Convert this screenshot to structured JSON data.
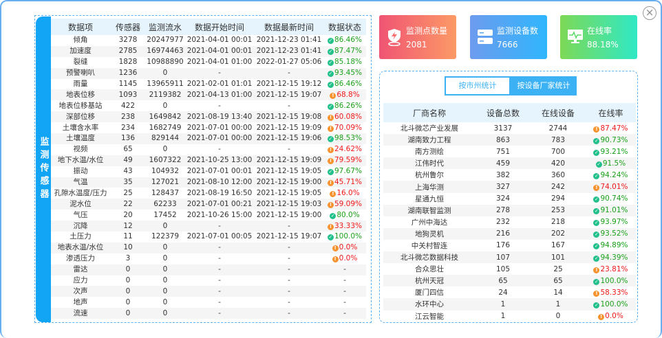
{
  "close_icon": "close-icon",
  "sensor_panel": {
    "side_label": "监测传感器",
    "headers": [
      "数据项",
      "传感器",
      "监测流水",
      "数据开始时间",
      "数据最新时间",
      "数据状态"
    ],
    "rows": [
      [
        "倾角",
        "3278",
        "20247977",
        "2021-04-01 00:01",
        "2021-12-23 01:41",
        "86.46%",
        "ok"
      ],
      [
        "加速度",
        "2785",
        "16974463",
        "2021-04-01 00:01",
        "2021-12-23 01:41",
        "87.47%",
        "ok"
      ],
      [
        "裂缝",
        "1828",
        "10988890",
        "2021-04-01 01:00",
        "2022-01-27 05:06",
        "85.18%",
        "ok"
      ],
      [
        "预警喇叭",
        "1236",
        "0",
        "-",
        "-",
        "93.45%",
        "ok"
      ],
      [
        "雨量",
        "1145",
        "13965911",
        "2021-02-01 01:01",
        "2021-12-15 19:12",
        "86.46%",
        "ok"
      ],
      [
        "地表位移",
        "1093",
        "2119382",
        "2021-04-13 01:00",
        "2021-12-15 19:07",
        "68.8%",
        "bad"
      ],
      [
        "地表位移基站",
        "422",
        "0",
        "-",
        "-",
        "86.26%",
        "ok"
      ],
      [
        "深部位移",
        "238",
        "1649842",
        "2021-08-19 13:40",
        "2021-12-15 19:08",
        "60.08%",
        "bad"
      ],
      [
        "土壤含水率",
        "234",
        "1682749",
        "2021-07-01 00:00",
        "2021-12-15 19:09",
        "70.09%",
        "bad"
      ],
      [
        "土壤温度",
        "136",
        "829144",
        "2021-07-01 00:00",
        "2021-12-15 19:06",
        "98.53%",
        "ok"
      ],
      [
        "视频",
        "65",
        "0",
        "-",
        "-",
        "24.62%",
        "bad"
      ],
      [
        "地下水温/水位",
        "49",
        "1607322",
        "2021-10-25 13:00",
        "2021-12-15 19:09",
        "79.59%",
        "bad"
      ],
      [
        "振动",
        "43",
        "104932",
        "2021-07-01 00:01",
        "2021-12-15 19:05",
        "97.67%",
        "ok"
      ],
      [
        "气温",
        "35",
        "127021",
        "2021-08-10 12:00",
        "2021-12-15 19:00",
        "45.71%",
        "bad"
      ],
      [
        "孔隙水温度/压力",
        "25",
        "128437",
        "2021-08-19 16:50",
        "2021-12-15 19:05",
        "16.0%",
        "bad"
      ],
      [
        "泥水位",
        "22",
        "62233",
        "2021-07-01 00:21",
        "2021-12-15 19:03",
        "59.09%",
        "bad"
      ],
      [
        "气压",
        "20",
        "17452",
        "2021-10-26 15:00",
        "2021-12-15 19:00",
        "80.0%",
        "ok"
      ],
      [
        "沉降",
        "12",
        "0",
        "-",
        "-",
        "33.33%",
        "bad"
      ],
      [
        "土压力",
        "11",
        "122379",
        "2021-07-01 00:05",
        "2021-12-15 19:07",
        "100.0%",
        "ok"
      ],
      [
        "地表水温/水位",
        "10",
        "0",
        "-",
        "-",
        "0.0%",
        "bad"
      ],
      [
        "渗透压力",
        "3",
        "0",
        "-",
        "-",
        "0.0%",
        "bad"
      ],
      [
        "雷达",
        "0",
        "0",
        "-",
        "-",
        "-",
        ""
      ],
      [
        "应力",
        "0",
        "0",
        "-",
        "-",
        "-",
        ""
      ],
      [
        "次声",
        "0",
        "0",
        "-",
        "-",
        "-",
        ""
      ],
      [
        "地声",
        "0",
        "0",
        "-",
        "-",
        "-",
        ""
      ],
      [
        "流速",
        "0",
        "0",
        "-",
        "-",
        "-",
        ""
      ]
    ]
  },
  "cards": [
    {
      "title": "监测点数量",
      "value": "2081",
      "icon": "shield-lightning-icon"
    },
    {
      "title": "监测设备数",
      "value": "7666",
      "icon": "server-icon"
    },
    {
      "title": "在线率",
      "value": "88.18%",
      "icon": "monitor-pulse-icon"
    }
  ],
  "vendor_panel": {
    "tabs": [
      {
        "label": "按市州统计",
        "active": false
      },
      {
        "label": "按设备厂家统计",
        "active": true
      }
    ],
    "headers": [
      "厂商名称",
      "设备总数",
      "在线设备",
      "在线率"
    ],
    "rows": [
      [
        "北斗微芯产业发展",
        "3137",
        "2744",
        "87.47%",
        "bad"
      ],
      [
        "湖南致力工程",
        "863",
        "783",
        "90.73%",
        "ok"
      ],
      [
        "南方测绘",
        "751",
        "700",
        "93.21%",
        "ok"
      ],
      [
        "江伟时代",
        "459",
        "420",
        "91.5%",
        "ok"
      ],
      [
        "杭州鲁尔",
        "382",
        "360",
        "94.24%",
        "ok"
      ],
      [
        "上海华测",
        "327",
        "242",
        "74.01%",
        "bad"
      ],
      [
        "星通九恒",
        "324",
        "294",
        "90.74%",
        "ok"
      ],
      [
        "湖南联智监测",
        "278",
        "253",
        "91.01%",
        "ok"
      ],
      [
        "广州中海达",
        "232",
        "218",
        "93.97%",
        "ok"
      ],
      [
        "地狗灵机",
        "216",
        "202",
        "93.52%",
        "ok"
      ],
      [
        "中关村智连",
        "176",
        "167",
        "94.89%",
        "ok"
      ],
      [
        "北斗微芯数据科技",
        "107",
        "101",
        "94.39%",
        "ok"
      ],
      [
        "合众思壮",
        "105",
        "25",
        "23.81%",
        "bad"
      ],
      [
        "杭州天冠",
        "65",
        "65",
        "100.0%",
        "ok"
      ],
      [
        "厦门四信",
        "24",
        "14",
        "58.33%",
        "bad"
      ],
      [
        "水环中心",
        "1",
        "1",
        "100.0%",
        "ok"
      ],
      [
        "江云智能",
        "1",
        "0",
        "0.0%",
        "bad"
      ]
    ]
  },
  "colors": {
    "accent": "#12a5f5",
    "ok": "#1aa01a",
    "bad": "#f01818",
    "ok_icon": "#22c08a",
    "bad_icon": "#f7932e"
  }
}
